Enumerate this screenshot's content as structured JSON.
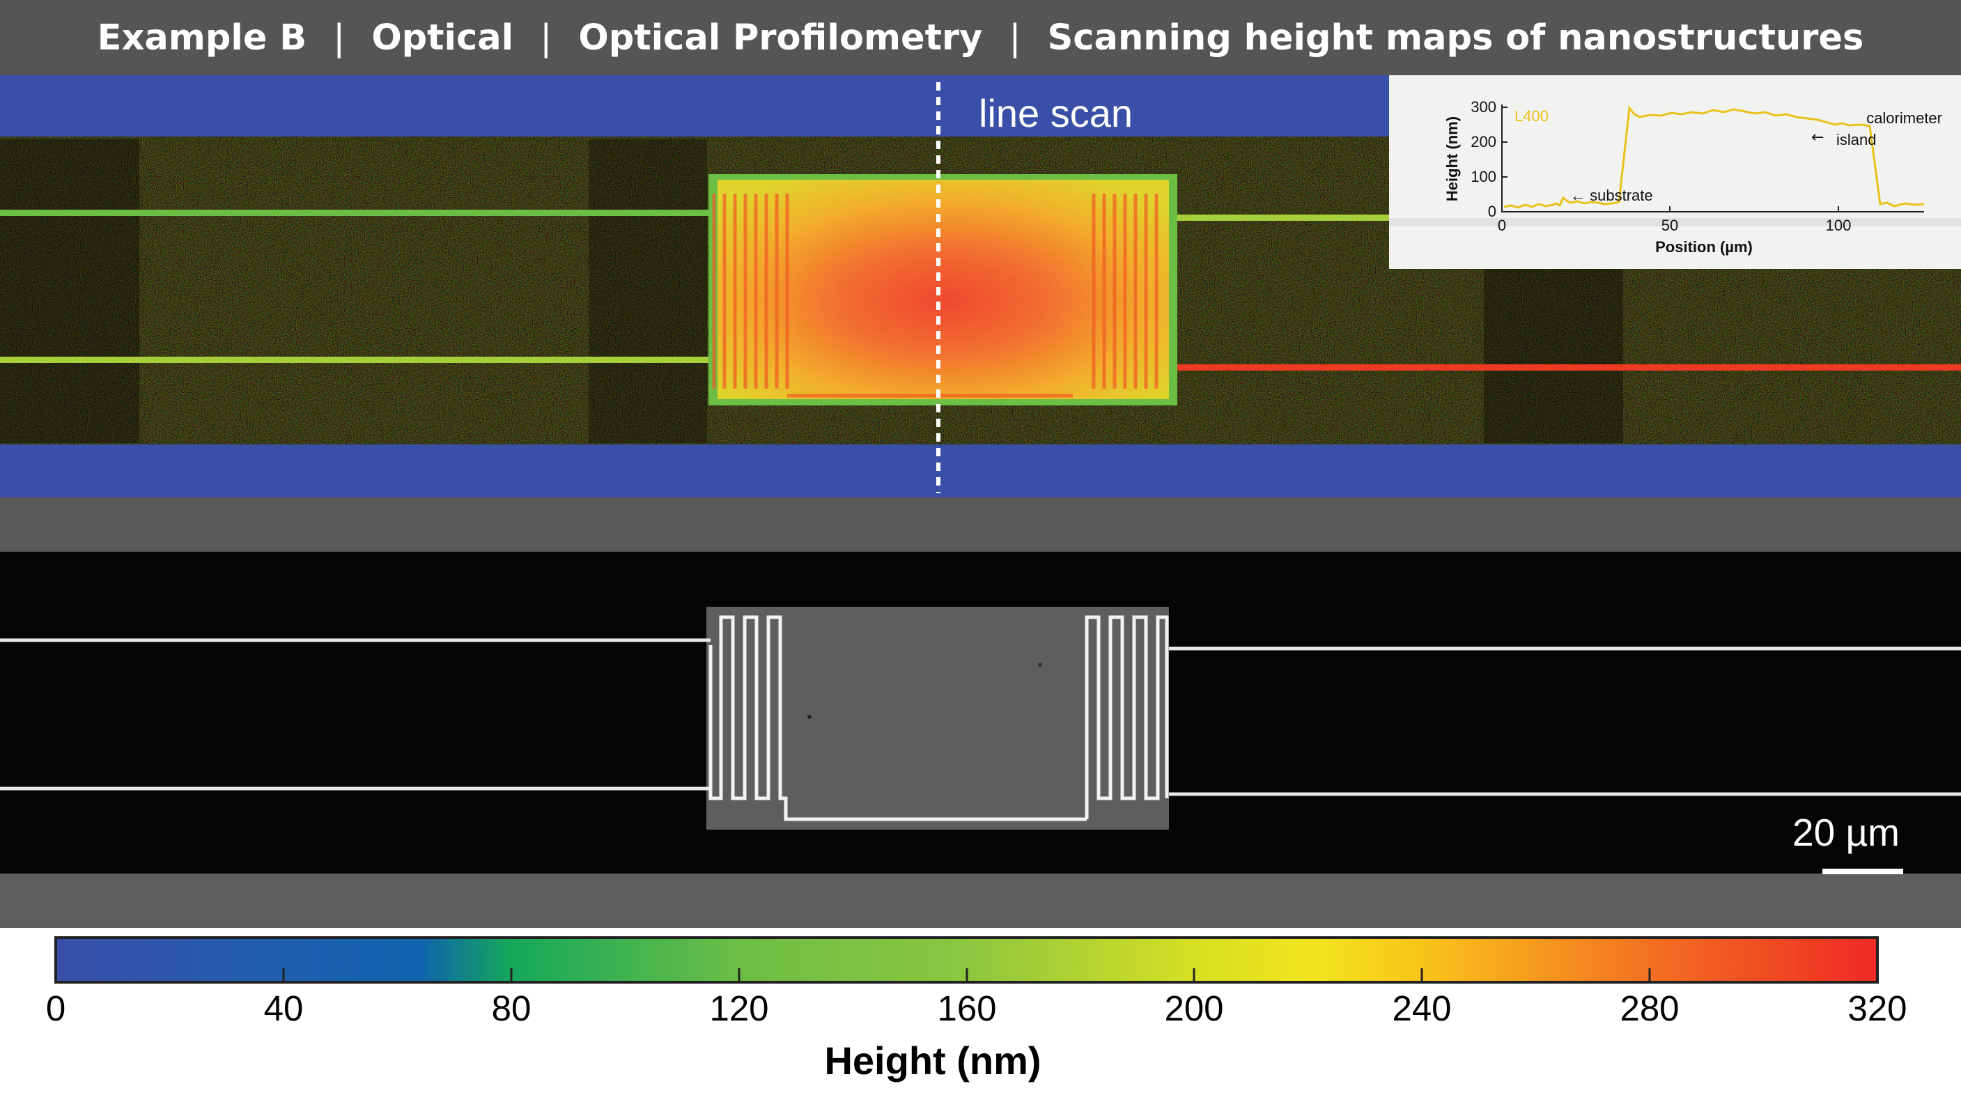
{
  "header": {
    "example": "Example B",
    "category": "Optical",
    "technique": "Optical Profilometry",
    "description": "Scanning height maps of nanostructures",
    "separator": "|"
  },
  "height_map": {
    "line_scan_label": "line scan"
  },
  "inset": {
    "sample_label": "L400",
    "ylabel": "Height (nm)",
    "xlabel": "Position (µm)",
    "yticks": [
      "0",
      "100",
      "200",
      "300"
    ],
    "xticks": [
      "0",
      "50",
      "100"
    ],
    "annotation_island": "← calorimeter island",
    "annotation_island_line1": "calorimeter",
    "annotation_island_line2": "island",
    "annotation_substrate": "← substrate",
    "trace_color": "#e8c21a"
  },
  "optical_image": {
    "scale_bar_label": "20 µm"
  },
  "colorbar": {
    "title": "Height (nm)",
    "ticks": [
      "0",
      "40",
      "80",
      "120",
      "160",
      "200",
      "240",
      "280",
      "320"
    ],
    "range": [
      0,
      320
    ],
    "colors": [
      "#3a4fa8",
      "#0f63ae",
      "#14a85a",
      "#6cbe45",
      "#a6cf3b",
      "#f2e51b",
      "#f6a11f",
      "#ee2a24"
    ]
  }
}
